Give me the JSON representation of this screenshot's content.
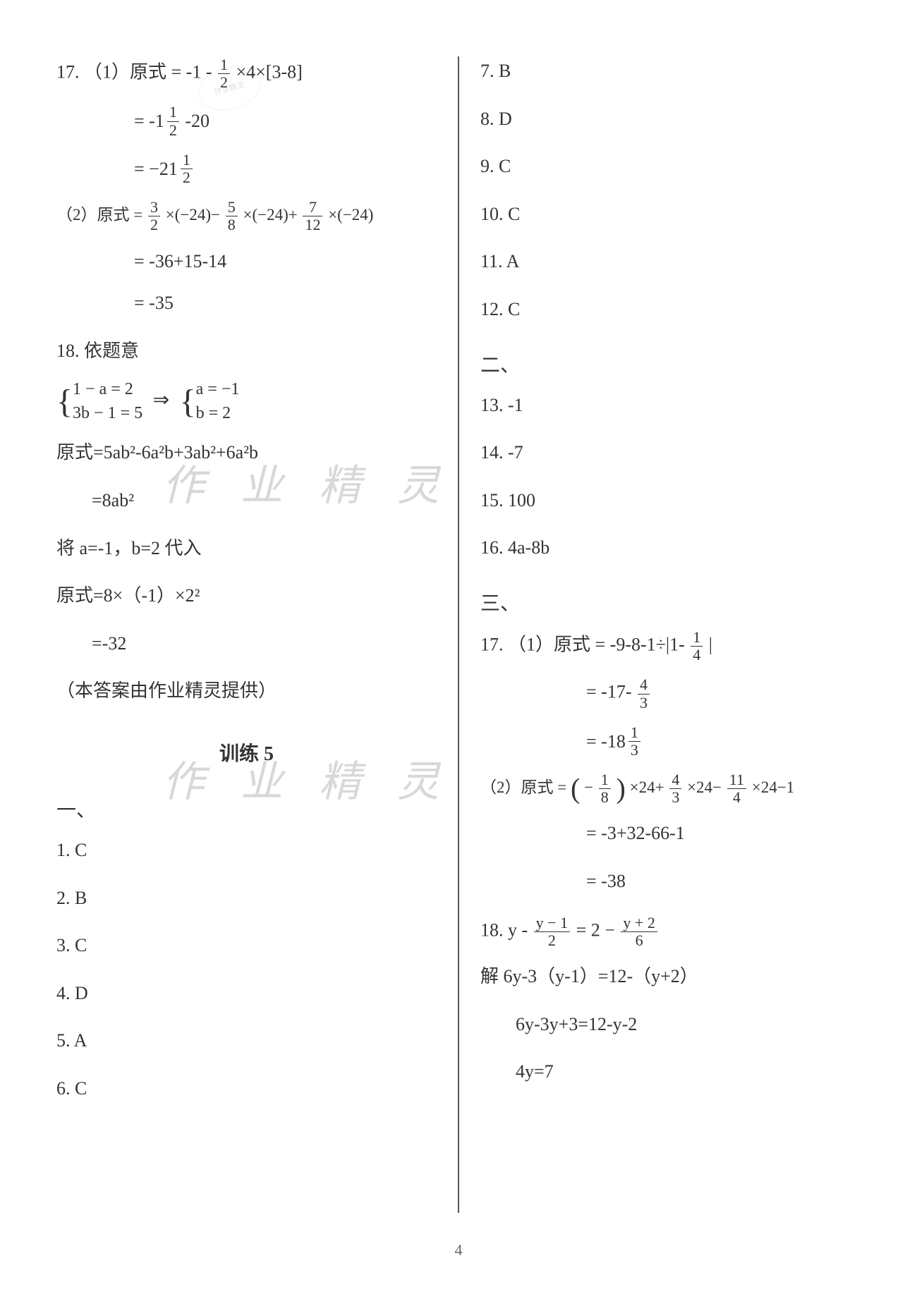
{
  "page_number": "4",
  "watermark_text": "作 业 精 灵",
  "stamp_text": "作业精灵",
  "left": {
    "q17_label": "17. （1）原式 = -1 -",
    "q17_1_frac1_num": "1",
    "q17_1_frac1_den": "2",
    "q17_1_rest": " ×4×[3-8]",
    "q17_1_step2a": "= ",
    "q17_1_step2_whole": "-1",
    "q17_1_step2_num": "1",
    "q17_1_step2_den": "2",
    "q17_1_step2b": " -20",
    "q17_1_step3a": "= ",
    "q17_1_step3_whole": "−21",
    "q17_1_step3_num": "1",
    "q17_1_step3_den": "2",
    "q17_2_label": "（2）原式 = ",
    "q17_2_f1n": "3",
    "q17_2_f1d": "2",
    "q17_2_t1": "×(−24)−",
    "q17_2_f2n": "5",
    "q17_2_f2d": "8",
    "q17_2_t2": "×(−24)+",
    "q17_2_f3n": "7",
    "q17_2_f3d": "12",
    "q17_2_t3": "×(−24)",
    "q17_2_step2": "= -36+15-14",
    "q17_2_step3": "= -35",
    "q18_label": "18. 依题意",
    "q18_sys1a": "1 − a = 2",
    "q18_sys1b": "3b − 1 = 5",
    "q18_sys2a": "a = −1",
    "q18_sys2b": "b = 2",
    "q18_expr1": "原式=5ab²-6a²b+3ab²+6a²b",
    "q18_expr2": "=8ab²",
    "q18_sub": "将 a=-1，b=2 代入",
    "q18_expr3": "原式=8×（-1）×2²",
    "q18_expr4": "=-32",
    "credit": "（本答案由作业精灵提供）",
    "training_heading": "训练 5",
    "sec1": "一、",
    "a1": "1. C",
    "a2": "2. B",
    "a3": "3. C",
    "a4": "4. D",
    "a5": "5. A",
    "a6": "6. C"
  },
  "right": {
    "a7": "7. B",
    "a8": "8. D",
    "a9": "9. C",
    "a10": "10. C",
    "a11": "11. A",
    "a12": "12. C",
    "sec2": "二、",
    "a13": "13. -1",
    "a14": "14. -7",
    "a15": "15. 100",
    "a16": "16. 4a-8b",
    "sec3": "三、",
    "q17_label": "17. （1）原式 = -9-8-1÷|1-",
    "q17_1_fn": "1",
    "q17_1_fd": "4",
    "q17_1_end": " |",
    "q17_1_s2a": "= -17-",
    "q17_1_s2n": "4",
    "q17_1_s2d": "3",
    "q17_1_s3a": "= ",
    "q17_1_s3w": "-18",
    "q17_1_s3n": "1",
    "q17_1_s3d": "3",
    "q17_2_label": "（2）原式 = ",
    "q17_2_p1a": "−",
    "q17_2_p1n": "1",
    "q17_2_p1d": "8",
    "q17_2_t1": "×24+",
    "q17_2_p2n": "4",
    "q17_2_p2d": "3",
    "q17_2_t2": "×24−",
    "q17_2_p3n": "11",
    "q17_2_p3d": "4",
    "q17_2_t3": "×24−1",
    "q17_2_s2": "= -3+32-66-1",
    "q17_2_s3": "= -38",
    "q18_label": "18.  y -",
    "q18_f1n": "y − 1",
    "q18_f1d": "2",
    "q18_mid": " = 2 − ",
    "q18_f2n": "y + 2",
    "q18_f2d": "6",
    "q18_s1": "解 6y-3（y-1）=12-（y+2）",
    "q18_s2": "6y-3y+3=12-y-2",
    "q18_s3": "4y=7"
  }
}
